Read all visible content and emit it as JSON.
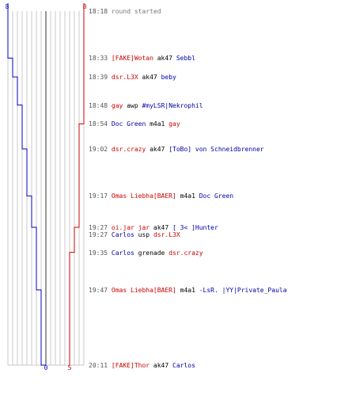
{
  "colors": {
    "blue_team": "#0000cc",
    "red_team": "#cc0000",
    "grid": "#c8c8c8",
    "center_line": "#777777"
  },
  "scoreboard": {
    "blue_start": "8",
    "red_start": "8",
    "blue_end": "0",
    "red_end": "5"
  },
  "log": [
    {
      "time": "18:18",
      "event": "round started"
    },
    {
      "time": "18:33",
      "killer": "[FAKE]Wotan",
      "killer_team": "red",
      "weapon": "ak47",
      "victim": "Sebbl",
      "victim_team": "blue"
    },
    {
      "time": "18:39",
      "killer": "dsr.L3X",
      "killer_team": "red",
      "weapon": "ak47",
      "victim": "beby",
      "victim_team": "blue"
    },
    {
      "time": "18:48",
      "killer": "gay",
      "killer_team": "red",
      "weapon": "awp",
      "victim": "#myLSR|Nekrophil",
      "victim_team": "blue"
    },
    {
      "time": "18:54",
      "killer": "Doc Green",
      "killer_team": "blue",
      "weapon": "m4a1",
      "victim": "gay",
      "victim_team": "red"
    },
    {
      "time": "19:02",
      "killer": "dsr.crazy",
      "killer_team": "red",
      "weapon": "ak47",
      "victim": "[ToBo] von Schneidbrenner",
      "victim_team": "blue"
    },
    {
      "time": "19:17",
      "killer": "Omas Liebha[BAER]",
      "killer_team": "red",
      "weapon": "m4a1",
      "victim": "Doc Green",
      "victim_team": "blue"
    },
    {
      "time": "19:27",
      "killer": "oi.jar jar",
      "killer_team": "red",
      "weapon": "ak47",
      "victim": "[ 3< ]Hunter",
      "victim_team": "blue"
    },
    {
      "time": "19:27",
      "killer": "Carlos",
      "killer_team": "blue",
      "weapon": "usp",
      "victim": "dsr.L3X",
      "victim_team": "red"
    },
    {
      "time": "19:35",
      "killer": "Carlos",
      "killer_team": "blue",
      "weapon": "grenade",
      "victim": "dsr.crazy",
      "victim_team": "red"
    },
    {
      "time": "19:47",
      "killer": "Omas Liebha[BAER]",
      "killer_team": "red",
      "weapon": "m4a1",
      "victim": "-LsR. |YY|Private_Paula",
      "victim_team": "blue"
    },
    {
      "time": "20:11",
      "killer": "[FAKE]Thor",
      "killer_team": "red",
      "weapon": "ak47",
      "victim": "Carlos",
      "victim_team": "blue"
    }
  ]
}
